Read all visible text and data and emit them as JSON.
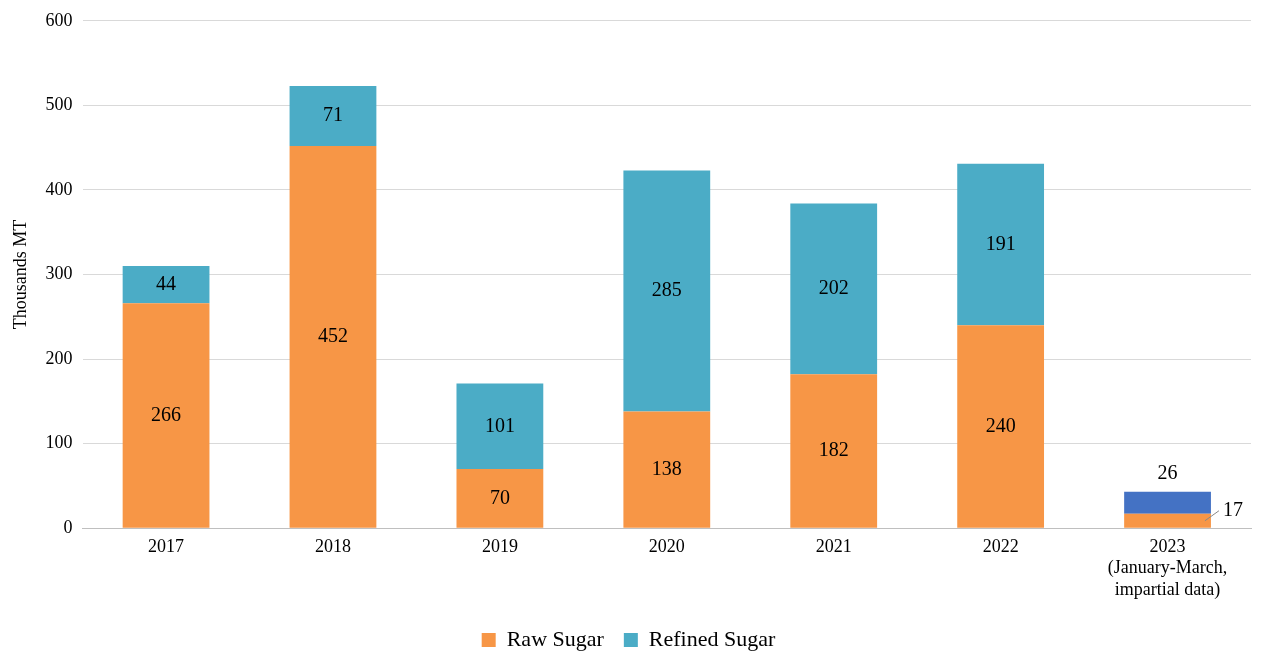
{
  "chart_data": {
    "type": "bar",
    "ylabel": "Thousands MT",
    "stacked": true,
    "categories": [
      "2017",
      "2018",
      "2019",
      "2020",
      "2021",
      "2022",
      "2023 (January-March, impartial data)"
    ],
    "series": [
      {
        "name": "Raw Sugar",
        "color": "#f79646",
        "values": [
          266,
          452,
          70,
          138,
          182,
          240,
          17
        ]
      },
      {
        "name": "Refined Sugar",
        "color": "#4bacc6",
        "colors": [
          "#4bacc6",
          "#4bacc6",
          "#4bacc6",
          "#4bacc6",
          "#4bacc6",
          "#4bacc6",
          "#4472c4"
        ],
        "values": [
          44,
          71,
          101,
          285,
          202,
          191,
          26
        ]
      }
    ],
    "ylim": [
      0,
      600
    ],
    "yticks": [
      0,
      100,
      200,
      300,
      400,
      500,
      600
    ],
    "grid": "y",
    "legend": "bottom",
    "data_labels": true
  }
}
